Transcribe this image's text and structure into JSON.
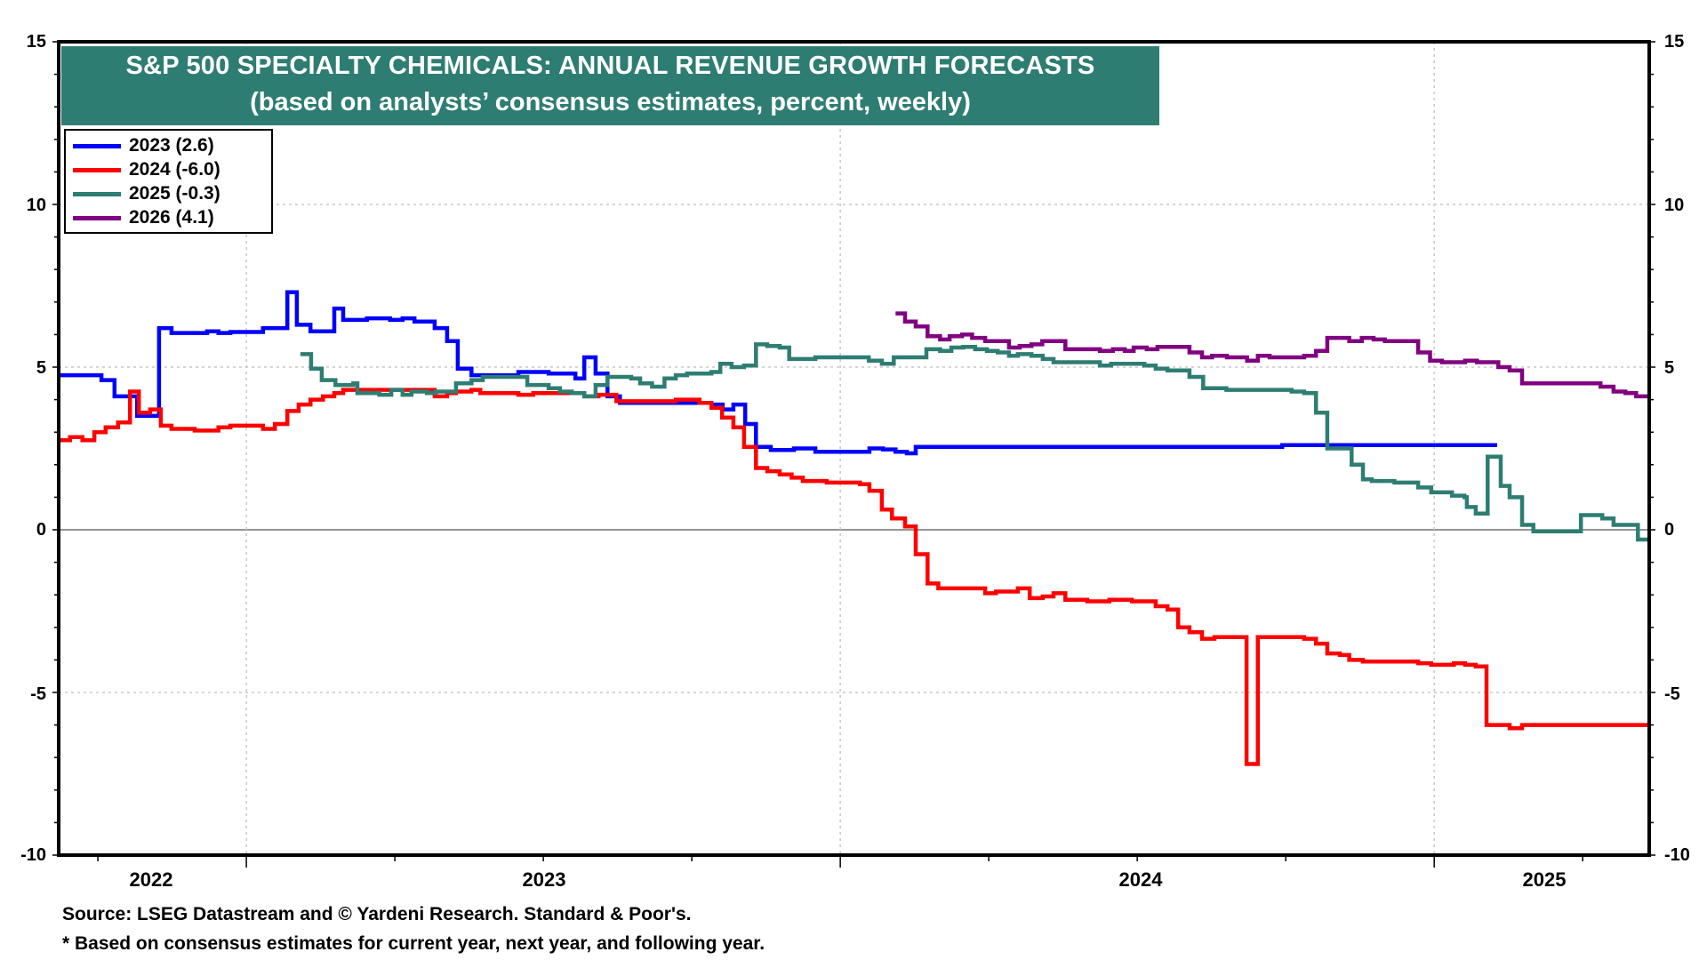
{
  "chart_data": {
    "type": "line",
    "title": "S&P 500 SPECIALTY CHEMICALS: ANNUAL REVENUE GROWTH FORECASTS",
    "subtitle": "(based on analysts’ consensus estimates, percent, weekly)",
    "xlabel": "",
    "ylabel": "",
    "ylim": [
      -10,
      15
    ],
    "xlim": [
      2022.684,
      2025.362
    ],
    "yticks": [
      15,
      10,
      5,
      0,
      -5,
      -10
    ],
    "ytick_labels": [
      "15",
      "10",
      "5",
      "0",
      "-5",
      "-10"
    ],
    "year_labels": [
      {
        "label": "2022",
        "center": 2022.84
      },
      {
        "label": "2023",
        "center": 2023.5
      },
      {
        "label": "2024",
        "center": 2024.5
      },
      {
        "label": "2025",
        "center": 2025.18
      }
    ],
    "year_boundaries": [
      2023,
      2024,
      2025
    ],
    "grid": true,
    "legend_position": "top-left",
    "step": true,
    "series": [
      {
        "name": "2023 (2.6)",
        "color": "#0000FF",
        "points": [
          [
            2022.684,
            4.75
          ],
          [
            2022.756,
            4.6
          ],
          [
            2022.778,
            4.1
          ],
          [
            2022.816,
            3.5
          ],
          [
            2022.853,
            6.2
          ],
          [
            2022.874,
            6.05
          ],
          [
            2022.934,
            6.1
          ],
          [
            2022.953,
            6.05
          ],
          [
            2022.973,
            6.08
          ],
          [
            2023.028,
            6.2
          ],
          [
            2023.069,
            7.3
          ],
          [
            2023.085,
            6.3
          ],
          [
            2023.108,
            6.1
          ],
          [
            2023.141,
            6.1
          ],
          [
            2023.148,
            6.8
          ],
          [
            2023.163,
            6.45
          ],
          [
            2023.203,
            6.5
          ],
          [
            2023.242,
            6.45
          ],
          [
            2023.263,
            6.5
          ],
          [
            2023.283,
            6.4
          ],
          [
            2023.317,
            6.2
          ],
          [
            2023.338,
            5.8
          ],
          [
            2023.356,
            4.95
          ],
          [
            2023.379,
            4.75
          ],
          [
            2023.458,
            4.85
          ],
          [
            2023.509,
            4.8
          ],
          [
            2023.554,
            4.65
          ],
          [
            2023.569,
            5.3
          ],
          [
            2023.588,
            4.8
          ],
          [
            2023.608,
            4.1
          ],
          [
            2023.629,
            3.9
          ],
          [
            2023.719,
            3.9
          ],
          [
            2023.783,
            3.85
          ],
          [
            2023.802,
            3.7
          ],
          [
            2023.82,
            3.85
          ],
          [
            2023.84,
            3.25
          ],
          [
            2023.858,
            2.55
          ],
          [
            2023.883,
            2.45
          ],
          [
            2023.922,
            2.5
          ],
          [
            2023.958,
            2.4
          ],
          [
            2024.049,
            2.5
          ],
          [
            2024.072,
            2.47
          ],
          [
            2024.093,
            2.4
          ],
          [
            2024.112,
            2.35
          ],
          [
            2024.127,
            2.55
          ],
          [
            2024.744,
            2.6
          ],
          [
            2025.106,
            2.6
          ]
        ]
      },
      {
        "name": "2024 (-6.0)",
        "color": "#FF0000",
        "points": [
          [
            2022.684,
            2.75
          ],
          [
            2022.703,
            2.85
          ],
          [
            2022.724,
            2.75
          ],
          [
            2022.744,
            3.0
          ],
          [
            2022.763,
            3.15
          ],
          [
            2022.784,
            3.3
          ],
          [
            2022.804,
            4.25
          ],
          [
            2022.819,
            3.6
          ],
          [
            2022.838,
            3.7
          ],
          [
            2022.856,
            3.2
          ],
          [
            2022.874,
            3.1
          ],
          [
            2022.913,
            3.05
          ],
          [
            2022.953,
            3.15
          ],
          [
            2022.973,
            3.2
          ],
          [
            2023.028,
            3.1
          ],
          [
            2023.048,
            3.25
          ],
          [
            2023.069,
            3.65
          ],
          [
            2023.088,
            3.85
          ],
          [
            2023.108,
            4.0
          ],
          [
            2023.129,
            4.1
          ],
          [
            2023.148,
            4.2
          ],
          [
            2023.163,
            4.3
          ],
          [
            2023.317,
            4.1
          ],
          [
            2023.338,
            4.2
          ],
          [
            2023.353,
            4.25
          ],
          [
            2023.379,
            4.3
          ],
          [
            2023.394,
            4.2
          ],
          [
            2023.458,
            4.15
          ],
          [
            2023.483,
            4.2
          ],
          [
            2023.569,
            4.1
          ],
          [
            2023.593,
            4.15
          ],
          [
            2023.623,
            3.95
          ],
          [
            2023.723,
            4.0
          ],
          [
            2023.763,
            3.9
          ],
          [
            2023.783,
            3.75
          ],
          [
            2023.801,
            3.45
          ],
          [
            2023.82,
            3.15
          ],
          [
            2023.838,
            2.55
          ],
          [
            2023.858,
            1.9
          ],
          [
            2023.877,
            1.8
          ],
          [
            2023.898,
            1.7
          ],
          [
            2023.918,
            1.6
          ],
          [
            2023.937,
            1.5
          ],
          [
            2023.977,
            1.45
          ],
          [
            2024.033,
            1.4
          ],
          [
            2024.049,
            1.2
          ],
          [
            2024.07,
            0.62
          ],
          [
            2024.087,
            0.35
          ],
          [
            2024.109,
            0.1
          ],
          [
            2024.127,
            -0.75
          ],
          [
            2024.147,
            -1.65
          ],
          [
            2024.165,
            -1.8
          ],
          [
            2024.244,
            -1.95
          ],
          [
            2024.262,
            -1.9
          ],
          [
            2024.299,
            -1.8
          ],
          [
            2024.319,
            -2.1
          ],
          [
            2024.341,
            -2.05
          ],
          [
            2024.359,
            -1.95
          ],
          [
            2024.379,
            -2.15
          ],
          [
            2024.416,
            -2.2
          ],
          [
            2024.453,
            -2.15
          ],
          [
            2024.491,
            -2.2
          ],
          [
            2024.531,
            -2.35
          ],
          [
            2024.551,
            -2.45
          ],
          [
            2024.569,
            -3.0
          ],
          [
            2024.588,
            -3.15
          ],
          [
            2024.609,
            -3.35
          ],
          [
            2024.63,
            -3.3
          ],
          [
            2024.684,
            -7.2
          ],
          [
            2024.703,
            -3.3
          ],
          [
            2024.781,
            -3.35
          ],
          [
            2024.801,
            -3.5
          ],
          [
            2024.82,
            -3.8
          ],
          [
            2024.841,
            -3.85
          ],
          [
            2024.857,
            -4.0
          ],
          [
            2024.88,
            -4.05
          ],
          [
            2024.973,
            -4.1
          ],
          [
            2024.995,
            -4.15
          ],
          [
            2025.033,
            -4.1
          ],
          [
            2025.052,
            -4.15
          ],
          [
            2025.07,
            -4.2
          ],
          [
            2025.088,
            -6.0
          ],
          [
            2025.127,
            -6.1
          ],
          [
            2025.148,
            -6.0
          ],
          [
            2025.362,
            -6.0
          ]
        ]
      },
      {
        "name": "2025 (-0.3)",
        "color": "#2E7D72",
        "points": [
          [
            2023.091,
            5.4
          ],
          [
            2023.109,
            4.95
          ],
          [
            2023.127,
            4.6
          ],
          [
            2023.15,
            4.45
          ],
          [
            2023.18,
            4.5
          ],
          [
            2023.187,
            4.2
          ],
          [
            2023.224,
            4.15
          ],
          [
            2023.244,
            4.3
          ],
          [
            2023.263,
            4.15
          ],
          [
            2023.278,
            4.25
          ],
          [
            2023.304,
            4.2
          ],
          [
            2023.319,
            4.25
          ],
          [
            2023.353,
            4.5
          ],
          [
            2023.379,
            4.6
          ],
          [
            2023.398,
            4.7
          ],
          [
            2023.473,
            4.45
          ],
          [
            2023.509,
            4.35
          ],
          [
            2023.528,
            4.25
          ],
          [
            2023.548,
            4.2
          ],
          [
            2023.569,
            4.1
          ],
          [
            2023.588,
            4.45
          ],
          [
            2023.608,
            4.7
          ],
          [
            2023.648,
            4.65
          ],
          [
            2023.663,
            4.5
          ],
          [
            2023.683,
            4.4
          ],
          [
            2023.704,
            4.65
          ],
          [
            2023.723,
            4.75
          ],
          [
            2023.742,
            4.8
          ],
          [
            2023.783,
            4.85
          ],
          [
            2023.798,
            5.1
          ],
          [
            2023.817,
            5.0
          ],
          [
            2023.838,
            5.05
          ],
          [
            2023.858,
            5.7
          ],
          [
            2023.877,
            5.65
          ],
          [
            2023.898,
            5.6
          ],
          [
            2023.914,
            5.25
          ],
          [
            2023.958,
            5.3
          ],
          [
            2024.048,
            5.2
          ],
          [
            2024.07,
            5.1
          ],
          [
            2024.09,
            5.3
          ],
          [
            2024.145,
            5.55
          ],
          [
            2024.168,
            5.5
          ],
          [
            2024.187,
            5.6
          ],
          [
            2024.207,
            5.62
          ],
          [
            2024.227,
            5.55
          ],
          [
            2024.247,
            5.5
          ],
          [
            2024.265,
            5.45
          ],
          [
            2024.284,
            5.35
          ],
          [
            2024.299,
            5.4
          ],
          [
            2024.322,
            5.35
          ],
          [
            2024.341,
            5.25
          ],
          [
            2024.359,
            5.15
          ],
          [
            2024.437,
            5.05
          ],
          [
            2024.456,
            5.1
          ],
          [
            2024.512,
            5.05
          ],
          [
            2024.531,
            4.95
          ],
          [
            2024.551,
            4.9
          ],
          [
            2024.572,
            4.9
          ],
          [
            2024.588,
            4.7
          ],
          [
            2024.611,
            4.35
          ],
          [
            2024.65,
            4.3
          ],
          [
            2024.76,
            4.25
          ],
          [
            2024.781,
            4.2
          ],
          [
            2024.801,
            3.6
          ],
          [
            2024.82,
            2.5
          ],
          [
            2024.861,
            2.0
          ],
          [
            2024.88,
            1.55
          ],
          [
            2024.895,
            1.5
          ],
          [
            2024.933,
            1.45
          ],
          [
            2024.973,
            1.3
          ],
          [
            2024.995,
            1.15
          ],
          [
            2025.03,
            1.05
          ],
          [
            2025.051,
            1.0
          ],
          [
            2025.055,
            0.7
          ],
          [
            2025.07,
            0.5
          ],
          [
            2025.09,
            2.25
          ],
          [
            2025.112,
            1.35
          ],
          [
            2025.127,
            1.0
          ],
          [
            2025.148,
            0.15
          ],
          [
            2025.167,
            -0.05
          ],
          [
            2025.247,
            0.45
          ],
          [
            2025.283,
            0.35
          ],
          [
            2025.302,
            0.15
          ],
          [
            2025.343,
            -0.3
          ],
          [
            2025.362,
            -0.3
          ]
        ]
      },
      {
        "name": "2026 (4.1)",
        "color": "#800080",
        "points": [
          [
            2024.093,
            6.65
          ],
          [
            2024.109,
            6.4
          ],
          [
            2024.127,
            6.25
          ],
          [
            2024.147,
            5.95
          ],
          [
            2024.168,
            5.85
          ],
          [
            2024.184,
            5.95
          ],
          [
            2024.205,
            6.0
          ],
          [
            2024.222,
            5.9
          ],
          [
            2024.244,
            5.8
          ],
          [
            2024.284,
            5.6
          ],
          [
            2024.302,
            5.65
          ],
          [
            2024.322,
            5.7
          ],
          [
            2024.34,
            5.8
          ],
          [
            2024.379,
            5.55
          ],
          [
            2024.416,
            5.55
          ],
          [
            2024.437,
            5.5
          ],
          [
            2024.459,
            5.55
          ],
          [
            2024.479,
            5.5
          ],
          [
            2024.494,
            5.6
          ],
          [
            2024.516,
            5.55
          ],
          [
            2024.534,
            5.62
          ],
          [
            2024.588,
            5.45
          ],
          [
            2024.609,
            5.3
          ],
          [
            2024.626,
            5.35
          ],
          [
            2024.651,
            5.3
          ],
          [
            2024.685,
            5.2
          ],
          [
            2024.703,
            5.35
          ],
          [
            2024.723,
            5.3
          ],
          [
            2024.781,
            5.35
          ],
          [
            2024.801,
            5.5
          ],
          [
            2024.82,
            5.9
          ],
          [
            2024.857,
            5.8
          ],
          [
            2024.878,
            5.9
          ],
          [
            2024.898,
            5.85
          ],
          [
            2024.917,
            5.8
          ],
          [
            2024.973,
            5.45
          ],
          [
            2024.993,
            5.2
          ],
          [
            2025.013,
            5.15
          ],
          [
            2025.052,
            5.2
          ],
          [
            2025.072,
            5.15
          ],
          [
            2025.108,
            5.0
          ],
          [
            2025.127,
            4.9
          ],
          [
            2025.148,
            4.5
          ],
          [
            2025.28,
            4.4
          ],
          [
            2025.302,
            4.25
          ],
          [
            2025.322,
            4.2
          ],
          [
            2025.34,
            4.1
          ],
          [
            2025.362,
            4.1
          ]
        ]
      }
    ],
    "legend": [
      "2023 (2.6)",
      "2024 (-6.0)",
      "2025 (-0.3)",
      "2026 (4.1)"
    ]
  },
  "header": {
    "title": "S&P 500 SPECIALTY CHEMICALS: ANNUAL REVENUE GROWTH FORECASTS",
    "subtitle": "(based on analysts’ consensus estimates, percent, weekly)"
  },
  "legend": {
    "items": [
      {
        "label": "2023 (2.6)",
        "color": "#0000FF"
      },
      {
        "label": "2024 (-6.0)",
        "color": "#FF0000"
      },
      {
        "label": "2025 (-0.3)",
        "color": "#2E7D72"
      },
      {
        "label": "2026 (4.1)",
        "color": "#800080"
      }
    ]
  },
  "axes": {
    "left": [
      "15",
      "10",
      "5",
      "0",
      "-5",
      "-10"
    ],
    "right": [
      "15",
      "10",
      "5",
      "0",
      "-5",
      "-10"
    ],
    "years": [
      "2022",
      "2023",
      "2024",
      "2025"
    ]
  },
  "footer": {
    "source": "Source: LSEG Datastream and © Yardeni Research. Standard & Poor's.",
    "note": "* Based on consensus estimates for current year, next year, and following year."
  },
  "colors": {
    "title_bg": "#2E7D72",
    "title_text": "#FFFFFF",
    "grid": "#C8C8C8",
    "zero_line": "#555555"
  }
}
